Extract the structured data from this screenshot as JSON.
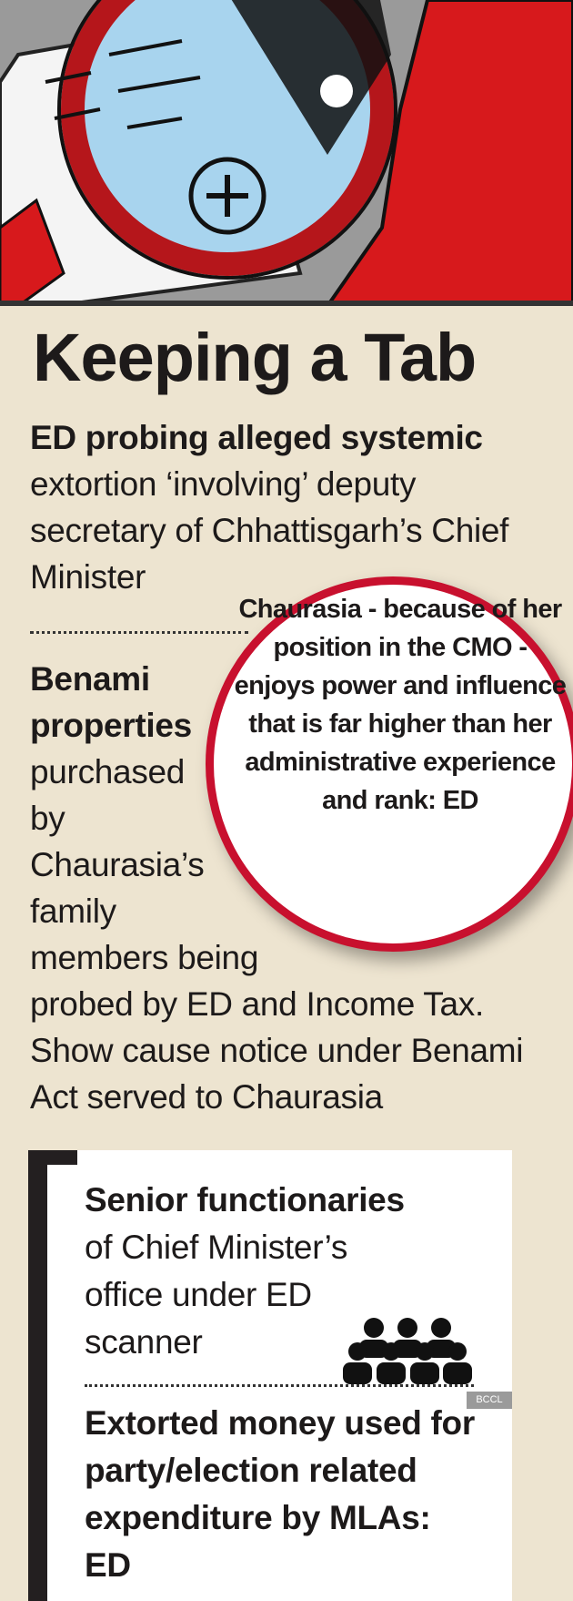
{
  "title": "Keeping a Tab",
  "points": [
    {
      "bold": "ED probing alleged systemic",
      "text": "extortion ‘involving’ deputy secretary of Chhattisgarh’s Chief Minister"
    },
    {
      "bold": "Benami properties",
      "text": "purchased by Chaurasia’s family members being probed by ED and Income Tax. Show cause notice under Benami Act served to Chaurasia"
    }
  ],
  "quote": "Chaurasia - because of her position in the CMO - enjoys power and influence that is far higher than her administrative experience and rank: ED",
  "box": [
    {
      "bold": "Senior functionaries",
      "text": "of Chief Minister’s office under ED scanner"
    },
    {
      "bold": "Extorted money used for party/election related expenditure by MLAs: ED"
    }
  ],
  "credit": "BCCL"
}
